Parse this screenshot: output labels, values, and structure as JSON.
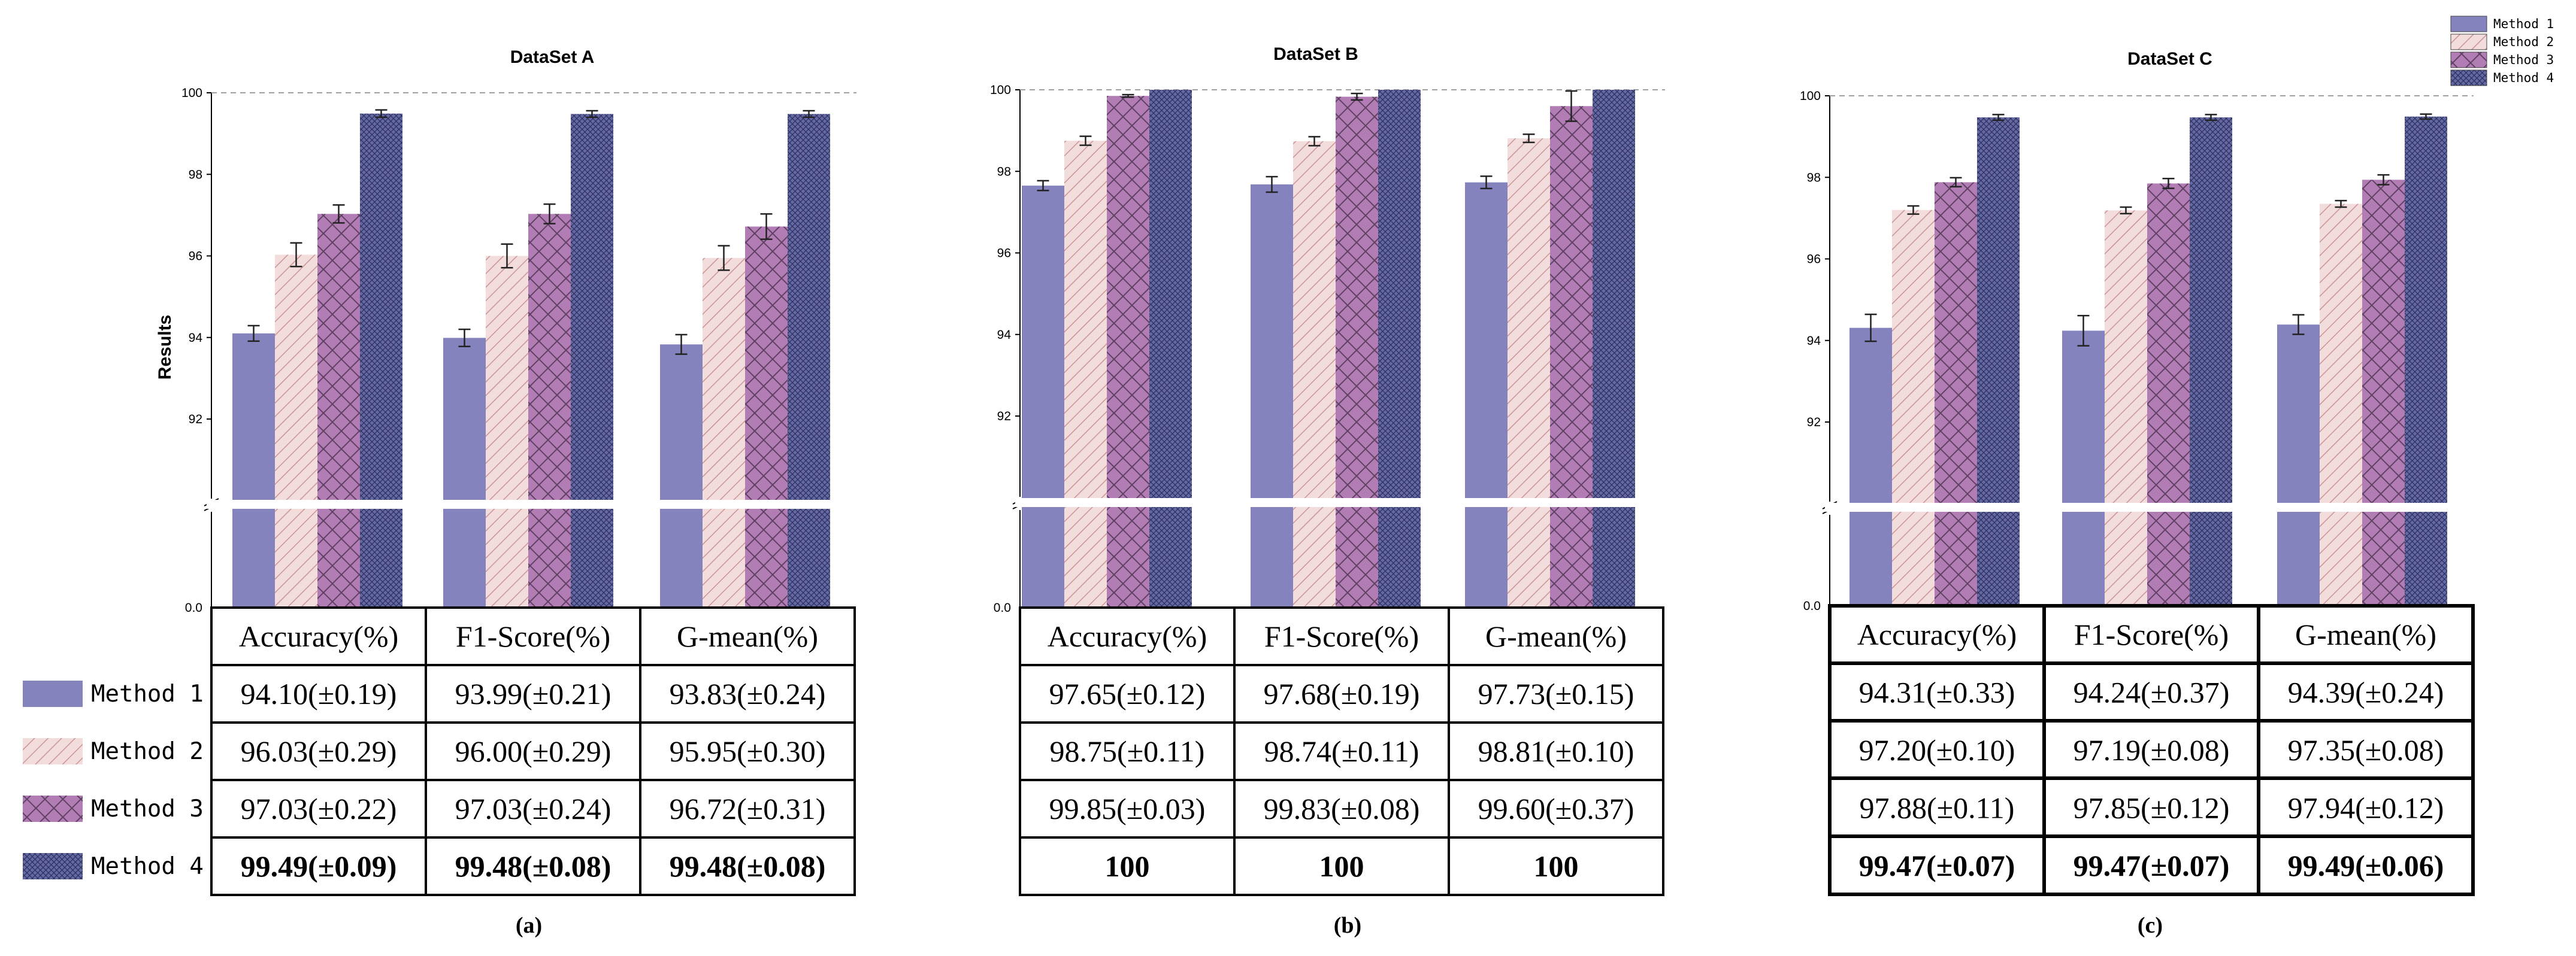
{
  "chart_data": [
    {
      "type": "bar",
      "caption": "(a)",
      "title": "DataSet A",
      "ylabel": "Results",
      "ylim": [
        90,
        100
      ],
      "yticks": [
        "92",
        "94",
        "96",
        "98",
        "100"
      ],
      "zero_label": "0.0",
      "columns": [
        "Accuracy(%)",
        "F1-Score(%)",
        "G-mean(%)"
      ],
      "series": [
        {
          "name": "Method 1",
          "values": [
            94.1,
            93.99,
            93.83
          ],
          "errors": [
            0.19,
            0.21,
            0.24
          ],
          "cells": [
            "94.10(±0.19)",
            "93.99(±0.21)",
            "93.83(±0.24)"
          ]
        },
        {
          "name": "Method 2",
          "values": [
            96.03,
            96.0,
            95.95
          ],
          "errors": [
            0.29,
            0.29,
            0.3
          ],
          "cells": [
            "96.03(±0.29)",
            "96.00(±0.29)",
            "95.95(±0.30)"
          ]
        },
        {
          "name": "Method 3",
          "values": [
            97.03,
            97.03,
            96.72
          ],
          "errors": [
            0.22,
            0.24,
            0.31
          ],
          "cells": [
            "97.03(±0.22)",
            "97.03(±0.24)",
            "96.72(±0.31)"
          ]
        },
        {
          "name": "Method 4",
          "values": [
            99.49,
            99.48,
            99.48
          ],
          "errors": [
            0.09,
            0.08,
            0.08
          ],
          "cells": [
            "99.49(±0.09)",
            "99.48(±0.08)",
            "99.48(±0.08)"
          ]
        }
      ]
    },
    {
      "type": "bar",
      "caption": "(b)",
      "title": "DataSet B",
      "ylim": [
        90,
        100
      ],
      "yticks": [
        "92",
        "94",
        "96",
        "98",
        "100"
      ],
      "zero_label": "0.0",
      "columns": [
        "Accuracy(%)",
        "F1-Score(%)",
        "G-mean(%)"
      ],
      "series": [
        {
          "name": "Method 1",
          "values": [
            97.65,
            97.68,
            97.73
          ],
          "errors": [
            0.12,
            0.19,
            0.15
          ],
          "cells": [
            "97.65(±0.12)",
            "97.68(±0.19)",
            "97.73(±0.15)"
          ]
        },
        {
          "name": "Method 2",
          "values": [
            98.75,
            98.74,
            98.81
          ],
          "errors": [
            0.11,
            0.11,
            0.1
          ],
          "cells": [
            "98.75(±0.11)",
            "98.74(±0.11)",
            "98.81(±0.10)"
          ]
        },
        {
          "name": "Method 3",
          "values": [
            99.85,
            99.83,
            99.6
          ],
          "errors": [
            0.03,
            0.08,
            0.37
          ],
          "cells": [
            "99.85(±0.03)",
            "99.83(±0.08)",
            "99.60(±0.37)"
          ]
        },
        {
          "name": "Method 4",
          "values": [
            100,
            100,
            100
          ],
          "errors": [
            0,
            0,
            0
          ],
          "cells": [
            "100",
            "100",
            "100"
          ]
        }
      ]
    },
    {
      "type": "bar",
      "caption": "(c)",
      "title": "DataSet C",
      "ylim": [
        90,
        100
      ],
      "yticks": [
        "92",
        "94",
        "96",
        "98",
        "100"
      ],
      "zero_label": "0.0",
      "columns": [
        "Accuracy(%)",
        "F1-Score(%)",
        "G-mean(%)"
      ],
      "series": [
        {
          "name": "Method 1",
          "values": [
            94.31,
            94.24,
            94.39
          ],
          "errors": [
            0.33,
            0.37,
            0.24
          ],
          "cells": [
            "94.31(±0.33)",
            "94.24(±0.37)",
            "94.39(±0.24)"
          ]
        },
        {
          "name": "Method 2",
          "values": [
            97.2,
            97.19,
            97.35
          ],
          "errors": [
            0.1,
            0.08,
            0.08
          ],
          "cells": [
            "97.20(±0.10)",
            "97.19(±0.08)",
            "97.35(±0.08)"
          ]
        },
        {
          "name": "Method 3",
          "values": [
            97.88,
            97.85,
            97.94
          ],
          "errors": [
            0.11,
            0.12,
            0.12
          ],
          "cells": [
            "97.88(±0.11)",
            "97.85(±0.12)",
            "97.94(±0.12)"
          ]
        },
        {
          "name": "Method 4",
          "values": [
            99.47,
            99.47,
            99.49
          ],
          "errors": [
            0.07,
            0.07,
            0.06
          ],
          "cells": [
            "99.47(±0.07)",
            "99.47(±0.07)",
            "99.49(±0.06)"
          ]
        }
      ]
    }
  ],
  "legend": {
    "position": "top-right",
    "items": [
      "Method 1",
      "Method 2",
      "Method 3",
      "Method 4"
    ]
  },
  "methods": [
    "Method 1",
    "Method 2",
    "Method 3",
    "Method 4"
  ],
  "colors": {
    "method1": "#8583bd",
    "method2_bg": "#f2dcdc",
    "method2_hatch": "#c99494",
    "method3": "#b17db4",
    "method3_hatch": "#604063",
    "method4": "#6469a6",
    "method4_hatch": "#2c2f57",
    "refline": "#a0a0a0"
  }
}
